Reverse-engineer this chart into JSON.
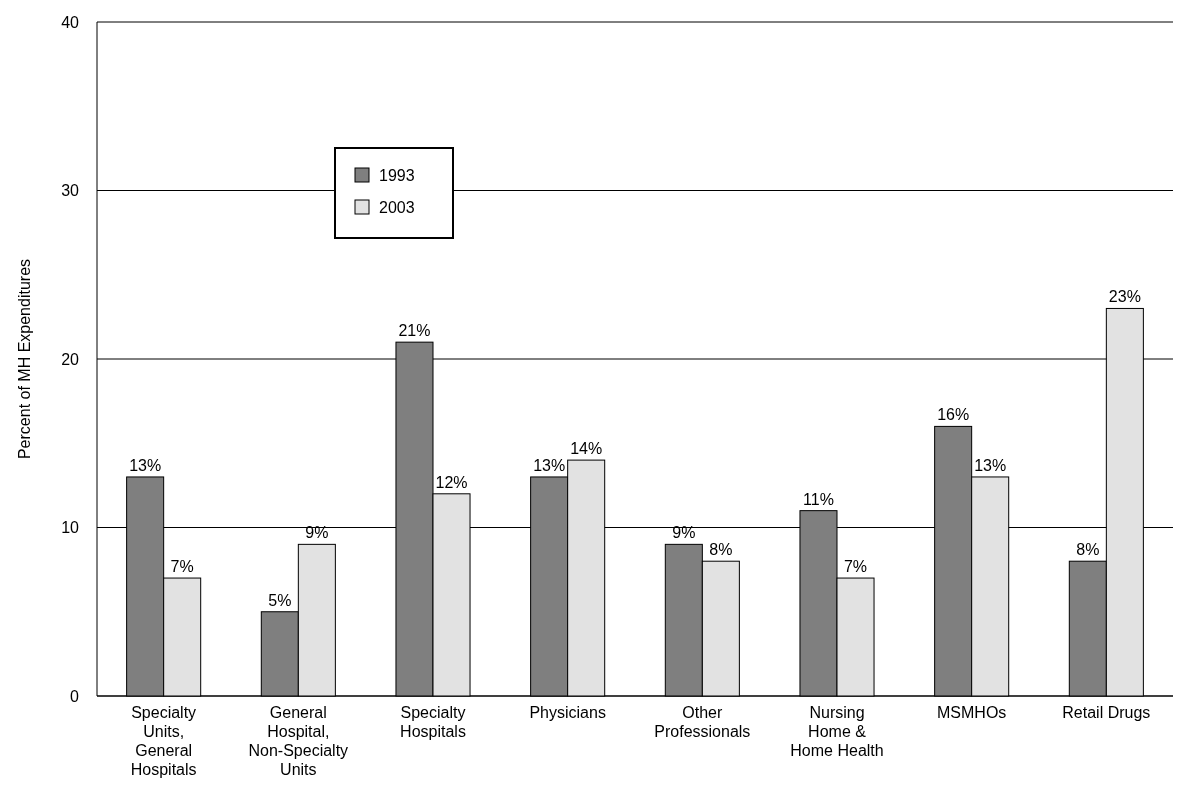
{
  "chart_data": {
    "type": "bar",
    "ylabel": "Percent of MH Expenditures",
    "categories": [
      "Specialty\nUnits,\nGeneral\nHospitals",
      "General\nHospital,\nNon-Specialty\nUnits",
      "Specialty\nHospitals",
      "Physicians",
      "Other\nProfessionals",
      "Nursing\nHome &\nHome Health",
      "MSMHOs",
      "Retail Drugs"
    ],
    "series": [
      {
        "name": "1993",
        "color": "#7f7f7f",
        "values": [
          13,
          5,
          21,
          13,
          9,
          11,
          16,
          8
        ],
        "value_labels": [
          "13%",
          "5%",
          "21%",
          "13%",
          "9%",
          "11%",
          "16%",
          "8%"
        ]
      },
      {
        "name": "2003",
        "color": "#e2e2e2",
        "values": [
          7,
          9,
          12,
          14,
          8,
          7,
          13,
          23
        ],
        "value_labels": [
          "7%",
          "9%",
          "12%",
          "14%",
          "8%",
          "7%",
          "13%",
          "23%"
        ]
      }
    ],
    "ylim": [
      0,
      40
    ],
    "yticks": [
      0,
      10,
      20,
      30,
      40
    ],
    "grid": "y",
    "legend": "top left"
  }
}
